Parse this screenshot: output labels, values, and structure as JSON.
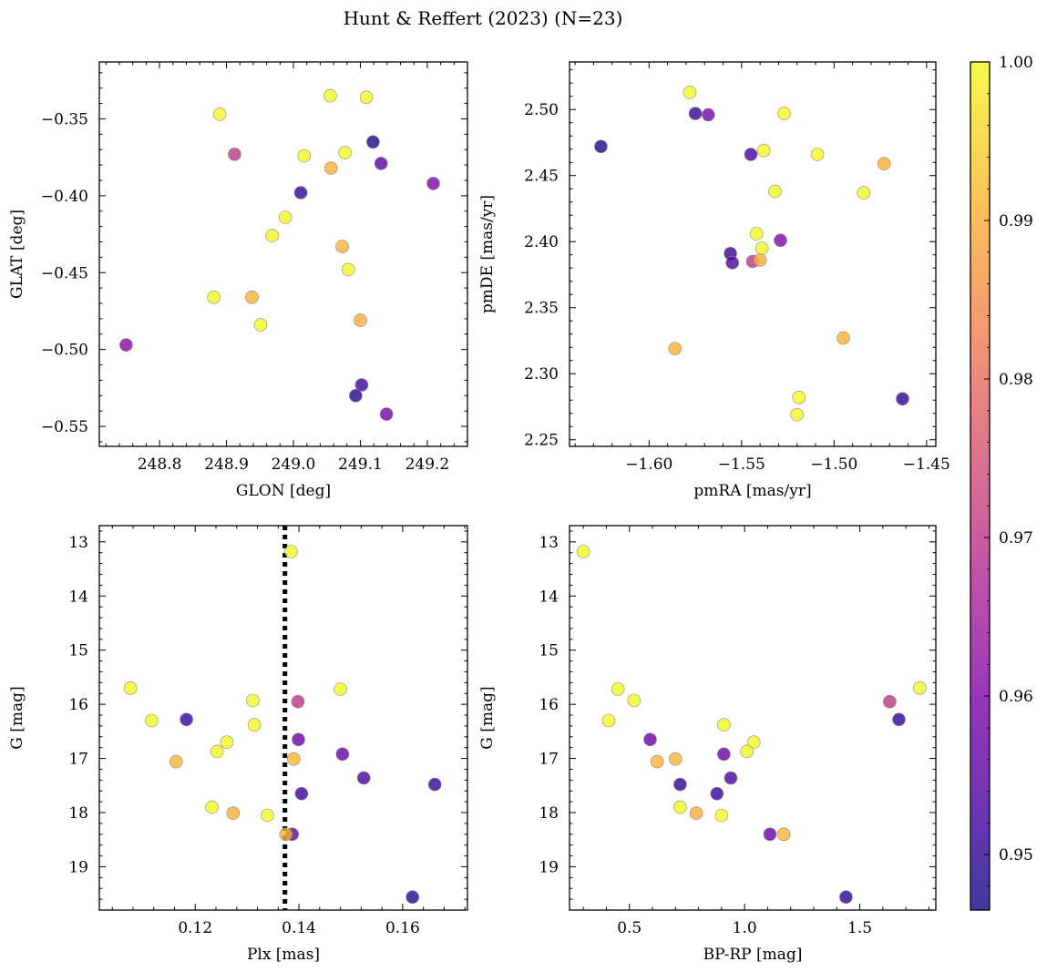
{
  "figure": {
    "title": "Hunt & Reffert (2023) (N=23)",
    "colorbar_ticks": [
      "0.95",
      "0.96",
      "0.97",
      "0.98",
      "0.99",
      "1.00"
    ],
    "colorbar_tick_values": [
      0.95,
      0.96,
      0.97,
      0.98,
      0.99,
      1.0
    ],
    "colorbar_range": [
      0.9465,
      1.0
    ],
    "colormap": "plasma"
  },
  "chart_data": [
    {
      "type": "scatter",
      "name": "glon-glat",
      "xlabel": "GLON [deg]",
      "ylabel": "GLAT [deg]",
      "xlim": [
        248.71,
        249.26
      ],
      "ylim": [
        -0.563,
        -0.313
      ],
      "y_inverted": false,
      "xticks": [
        248.8,
        248.9,
        249.0,
        249.1,
        249.2
      ],
      "xtick_labels": [
        "248.8",
        "248.9",
        "249.0",
        "249.1",
        "249.2"
      ],
      "yticks": [
        -0.35,
        -0.4,
        -0.45,
        -0.5,
        -0.55
      ],
      "ytick_labels": [
        "−0.35",
        "−0.40",
        "−0.45",
        "−0.50",
        "−0.55"
      ],
      "points": [
        {
          "x": 249.055,
          "y": -0.335,
          "c": 1.0
        },
        {
          "x": 249.109,
          "y": -0.336,
          "c": 1.0
        },
        {
          "x": 248.89,
          "y": -0.347,
          "c": 1.0
        },
        {
          "x": 249.119,
          "y": -0.365,
          "c": 0.948
        },
        {
          "x": 248.912,
          "y": -0.373,
          "c": 0.97
        },
        {
          "x": 249.016,
          "y": -0.374,
          "c": 1.0
        },
        {
          "x": 249.077,
          "y": -0.372,
          "c": 1.0
        },
        {
          "x": 249.056,
          "y": -0.382,
          "c": 0.99
        },
        {
          "x": 249.131,
          "y": -0.379,
          "c": 0.955
        },
        {
          "x": 249.209,
          "y": -0.392,
          "c": 0.96
        },
        {
          "x": 249.011,
          "y": -0.398,
          "c": 0.95
        },
        {
          "x": 248.988,
          "y": -0.414,
          "c": 1.0
        },
        {
          "x": 248.968,
          "y": -0.426,
          "c": 1.0
        },
        {
          "x": 249.073,
          "y": -0.433,
          "c": 0.991
        },
        {
          "x": 249.082,
          "y": -0.448,
          "c": 1.0
        },
        {
          "x": 248.938,
          "y": -0.466,
          "c": 0.991
        },
        {
          "x": 248.881,
          "y": -0.466,
          "c": 1.0
        },
        {
          "x": 248.951,
          "y": -0.484,
          "c": 1.0
        },
        {
          "x": 249.1,
          "y": -0.481,
          "c": 0.99
        },
        {
          "x": 248.75,
          "y": -0.497,
          "c": 0.961
        },
        {
          "x": 249.102,
          "y": -0.523,
          "c": 0.952
        },
        {
          "x": 249.093,
          "y": -0.53,
          "c": 0.949
        },
        {
          "x": 249.139,
          "y": -0.542,
          "c": 0.958
        }
      ]
    },
    {
      "type": "scatter",
      "name": "pmra-pmde",
      "xlabel": "pmRA [mas/yr]",
      "ylabel": "pmDE [mas/yr]",
      "xlim": [
        -1.643,
        -1.445
      ],
      "ylim": [
        2.245,
        2.536
      ],
      "y_inverted": false,
      "xticks": [
        -1.6,
        -1.55,
        -1.5,
        -1.45
      ],
      "xtick_labels": [
        "−1.60",
        "−1.55",
        "−1.50",
        "−1.45"
      ],
      "yticks": [
        2.25,
        2.3,
        2.35,
        2.4,
        2.45,
        2.5
      ],
      "ytick_labels": [
        "2.25",
        "2.30",
        "2.35",
        "2.40",
        "2.45",
        "2.50"
      ],
      "points": [
        {
          "x": -1.578,
          "y": 2.513,
          "c": 1.0
        },
        {
          "x": -1.575,
          "y": 2.497,
          "c": 0.95
        },
        {
          "x": -1.568,
          "y": 2.496,
          "c": 0.959
        },
        {
          "x": -1.527,
          "y": 2.497,
          "c": 1.0
        },
        {
          "x": -1.626,
          "y": 2.472,
          "c": 0.948
        },
        {
          "x": -1.545,
          "y": 2.466,
          "c": 0.952
        },
        {
          "x": -1.538,
          "y": 2.469,
          "c": 1.0
        },
        {
          "x": -1.509,
          "y": 2.466,
          "c": 1.0
        },
        {
          "x": -1.473,
          "y": 2.459,
          "c": 0.991
        },
        {
          "x": -1.532,
          "y": 2.438,
          "c": 1.0
        },
        {
          "x": -1.484,
          "y": 2.437,
          "c": 1.0
        },
        {
          "x": -1.542,
          "y": 2.406,
          "c": 1.0
        },
        {
          "x": -1.529,
          "y": 2.401,
          "c": 0.96
        },
        {
          "x": -1.539,
          "y": 2.395,
          "c": 1.0
        },
        {
          "x": -1.556,
          "y": 2.391,
          "c": 0.951
        },
        {
          "x": -1.555,
          "y": 2.384,
          "c": 0.953
        },
        {
          "x": -1.544,
          "y": 2.385,
          "c": 0.97
        },
        {
          "x": -1.54,
          "y": 2.386,
          "c": 0.99
        },
        {
          "x": -1.586,
          "y": 2.319,
          "c": 0.991
        },
        {
          "x": -1.495,
          "y": 2.327,
          "c": 0.991
        },
        {
          "x": -1.519,
          "y": 2.282,
          "c": 1.0
        },
        {
          "x": -1.52,
          "y": 2.269,
          "c": 1.0
        },
        {
          "x": -1.463,
          "y": 2.281,
          "c": 0.95
        }
      ]
    },
    {
      "type": "scatter",
      "name": "plx-g",
      "xlabel": "Plx [mas]",
      "ylabel": "G [mag]",
      "xlim": [
        0.1015,
        0.1725
      ],
      "ylim": [
        12.7,
        19.8
      ],
      "y_inverted": true,
      "vline": {
        "x": 0.1373,
        "style": "dotted"
      },
      "xticks": [
        0.12,
        0.14,
        0.16
      ],
      "xtick_labels": [
        "0.12",
        "0.14",
        "0.16"
      ],
      "yticks": [
        13,
        14,
        15,
        16,
        17,
        18,
        19
      ],
      "ytick_labels": [
        "13",
        "14",
        "15",
        "16",
        "17",
        "18",
        "19"
      ],
      "points": [
        {
          "x": 0.1385,
          "y": 13.18,
          "c": 1.0
        },
        {
          "x": 0.1075,
          "y": 15.7,
          "c": 1.0
        },
        {
          "x": 0.148,
          "y": 15.72,
          "c": 1.0
        },
        {
          "x": 0.1311,
          "y": 15.93,
          "c": 1.0
        },
        {
          "x": 0.1398,
          "y": 15.95,
          "c": 0.97
        },
        {
          "x": 0.1116,
          "y": 16.3,
          "c": 1.0
        },
        {
          "x": 0.1183,
          "y": 16.28,
          "c": 0.95
        },
        {
          "x": 0.1314,
          "y": 16.38,
          "c": 1.0
        },
        {
          "x": 0.1399,
          "y": 16.65,
          "c": 0.957
        },
        {
          "x": 0.1261,
          "y": 16.7,
          "c": 1.0
        },
        {
          "x": 0.1242,
          "y": 16.87,
          "c": 1.0
        },
        {
          "x": 0.1484,
          "y": 16.92,
          "c": 0.957
        },
        {
          "x": 0.1163,
          "y": 17.06,
          "c": 0.991
        },
        {
          "x": 0.139,
          "y": 17.01,
          "c": 0.991
        },
        {
          "x": 0.1525,
          "y": 17.36,
          "c": 0.953
        },
        {
          "x": 0.1662,
          "y": 17.48,
          "c": 0.95
        },
        {
          "x": 0.1405,
          "y": 17.65,
          "c": 0.951
        },
        {
          "x": 0.1232,
          "y": 17.9,
          "c": 1.0
        },
        {
          "x": 0.1273,
          "y": 18.01,
          "c": 0.99
        },
        {
          "x": 0.1339,
          "y": 18.05,
          "c": 1.0
        },
        {
          "x": 0.1387,
          "y": 18.4,
          "c": 0.956
        },
        {
          "x": 0.1375,
          "y": 18.4,
          "c": 0.991
        },
        {
          "x": 0.1619,
          "y": 19.56,
          "c": 0.949
        }
      ]
    },
    {
      "type": "scatter",
      "name": "bprp-g",
      "xlabel": "BP-RP [mag]",
      "ylabel": "G [mag]",
      "xlim": [
        0.24,
        1.83
      ],
      "ylim": [
        12.7,
        19.8
      ],
      "y_inverted": true,
      "xticks": [
        0.5,
        1.0,
        1.5
      ],
      "xtick_labels": [
        "0.5",
        "1.0",
        "1.5"
      ],
      "yticks": [
        13,
        14,
        15,
        16,
        17,
        18,
        19
      ],
      "ytick_labels": [
        "13",
        "14",
        "15",
        "16",
        "17",
        "18",
        "19"
      ],
      "points": [
        {
          "x": 0.3,
          "y": 13.18,
          "c": 1.0
        },
        {
          "x": 0.45,
          "y": 15.72,
          "c": 1.0
        },
        {
          "x": 1.76,
          "y": 15.7,
          "c": 1.0
        },
        {
          "x": 0.52,
          "y": 15.93,
          "c": 1.0
        },
        {
          "x": 1.63,
          "y": 15.95,
          "c": 0.97
        },
        {
          "x": 0.41,
          "y": 16.3,
          "c": 1.0
        },
        {
          "x": 1.67,
          "y": 16.28,
          "c": 0.95
        },
        {
          "x": 0.91,
          "y": 16.38,
          "c": 1.0
        },
        {
          "x": 0.59,
          "y": 16.65,
          "c": 0.957
        },
        {
          "x": 1.04,
          "y": 16.7,
          "c": 1.0
        },
        {
          "x": 1.01,
          "y": 16.87,
          "c": 1.0
        },
        {
          "x": 0.91,
          "y": 16.92,
          "c": 0.957
        },
        {
          "x": 0.62,
          "y": 17.06,
          "c": 0.991
        },
        {
          "x": 0.7,
          "y": 17.01,
          "c": 0.991
        },
        {
          "x": 0.94,
          "y": 17.36,
          "c": 0.953
        },
        {
          "x": 0.72,
          "y": 17.48,
          "c": 0.95
        },
        {
          "x": 0.88,
          "y": 17.65,
          "c": 0.951
        },
        {
          "x": 0.72,
          "y": 17.9,
          "c": 1.0
        },
        {
          "x": 0.79,
          "y": 18.01,
          "c": 0.99
        },
        {
          "x": 0.9,
          "y": 18.05,
          "c": 1.0
        },
        {
          "x": 1.11,
          "y": 18.4,
          "c": 0.956
        },
        {
          "x": 1.17,
          "y": 18.4,
          "c": 0.991
        },
        {
          "x": 1.44,
          "y": 19.56,
          "c": 0.949
        }
      ]
    }
  ]
}
